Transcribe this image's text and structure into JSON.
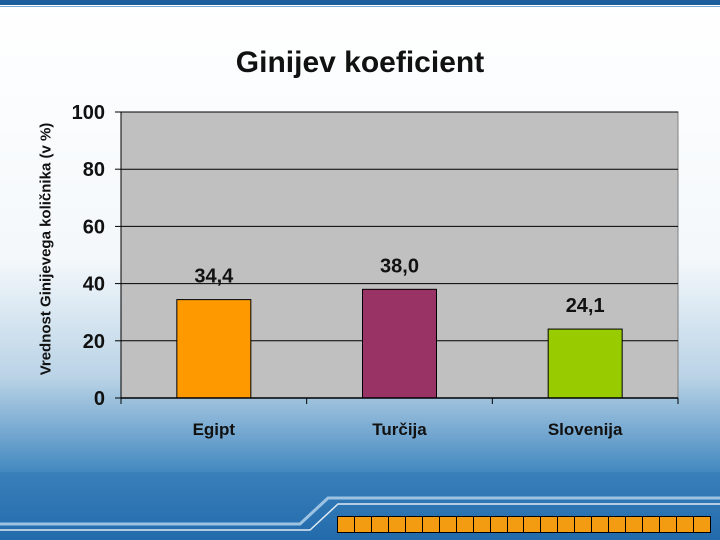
{
  "slide": {
    "footer_segments": 22
  },
  "chart_data": {
    "type": "bar",
    "title": "Ginijev koeficient",
    "ylabel": "Vrednost Ginijevega količnika (v %)",
    "xlabel": "",
    "categories": [
      "Egipt",
      "Turčija",
      "Slovenija"
    ],
    "values": [
      34.4,
      38.0,
      24.1
    ],
    "data_labels": [
      "34,4",
      "38,0",
      "24,1"
    ],
    "bar_colors": [
      "#ff9900",
      "#993366",
      "#99cc00"
    ],
    "ylim": [
      0,
      100
    ],
    "yticks": [
      0,
      20,
      40,
      60,
      80,
      100
    ],
    "grid": true,
    "plot_background": "#c0c0c0"
  }
}
